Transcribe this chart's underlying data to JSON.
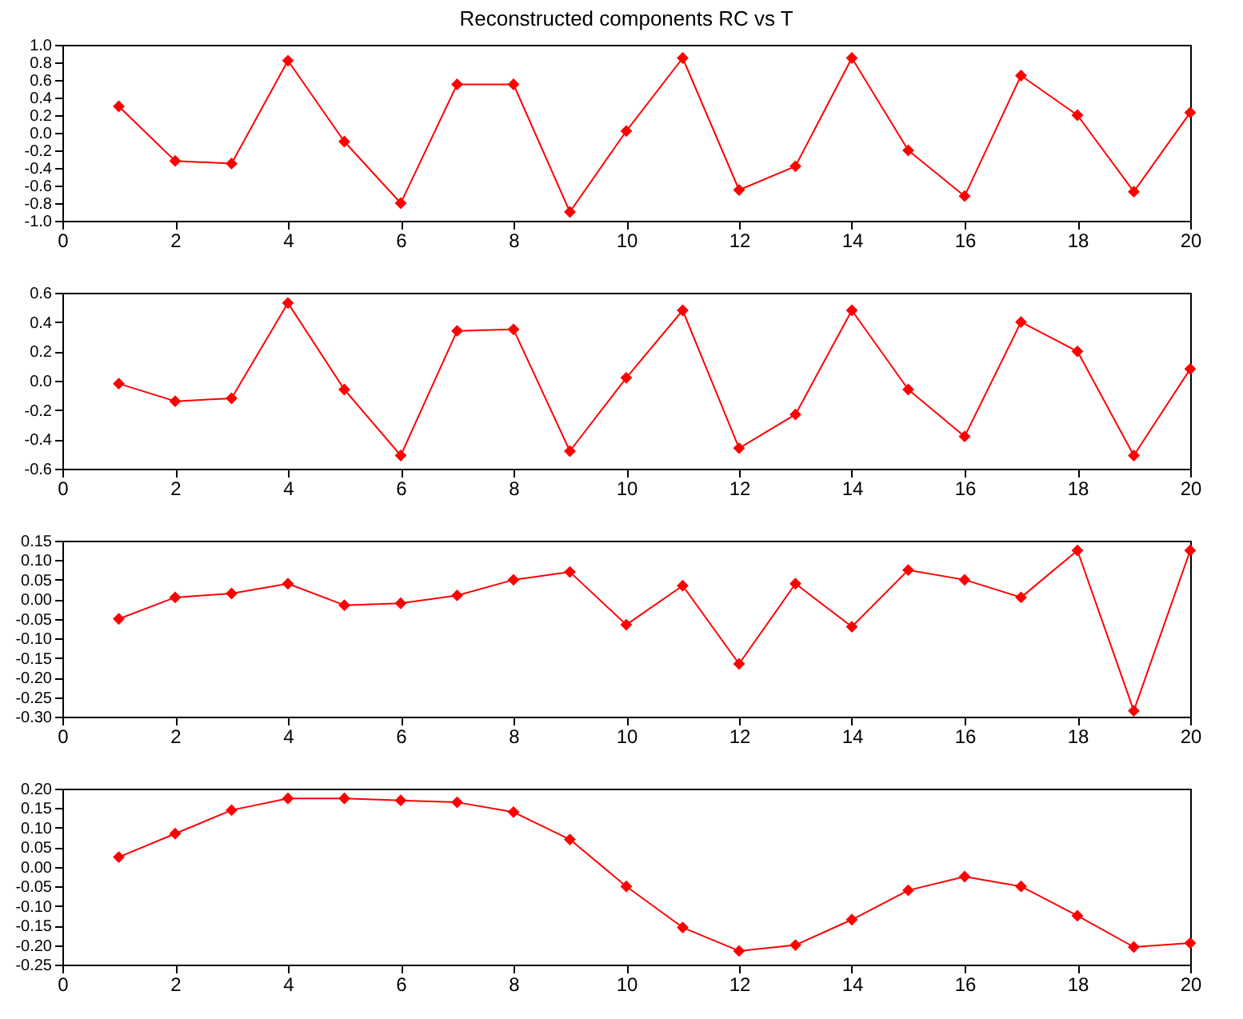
{
  "chart_data": [
    {
      "type": "line",
      "title": "Reconstructed components RC vs T",
      "x": [
        1,
        2,
        3,
        4,
        5,
        6,
        7,
        8,
        9,
        10,
        11,
        12,
        13,
        14,
        15,
        16,
        17,
        18,
        19,
        20
      ],
      "series": [
        {
          "color": "#ff0000",
          "values": [
            0.3,
            -0.32,
            -0.35,
            0.82,
            -0.1,
            -0.8,
            0.55,
            0.55,
            -0.9,
            0.02,
            0.85,
            -0.65,
            -0.38,
            0.85,
            -0.2,
            -0.72,
            0.65,
            0.2,
            -0.67,
            0.23
          ]
        }
      ],
      "xlim": [
        0,
        20
      ],
      "xticks": [
        0,
        2,
        4,
        6,
        8,
        10,
        12,
        14,
        16,
        18,
        20
      ],
      "ylim": [
        -1.0,
        1.0
      ],
      "yticks": [
        {
          "value": -1.0,
          "label": "-1.0"
        },
        {
          "value": -0.8,
          "label": "-0.8"
        },
        {
          "value": -0.6,
          "label": "-0.6"
        },
        {
          "value": -0.4,
          "label": "-0.4"
        },
        {
          "value": -0.2,
          "label": "-0.2"
        },
        {
          "value": 0,
          "label": "0.0"
        },
        {
          "value": 0.2,
          "label": "0.2"
        },
        {
          "value": 0.4,
          "label": "0.4"
        },
        {
          "value": 0.6,
          "label": "0.6"
        },
        {
          "value": 0.8,
          "label": "0.8"
        },
        {
          "value": 1.0,
          "label": "1.0"
        }
      ],
      "grid": false,
      "marker": "diamond",
      "line_style": "solid"
    },
    {
      "type": "line",
      "x": [
        1,
        2,
        3,
        4,
        5,
        6,
        7,
        8,
        9,
        10,
        11,
        12,
        13,
        14,
        15,
        16,
        17,
        18,
        19,
        20
      ],
      "series": [
        {
          "color": "#ff0000",
          "values": [
            -0.02,
            -0.14,
            -0.12,
            0.53,
            -0.06,
            -0.51,
            0.34,
            0.35,
            -0.48,
            0.02,
            0.48,
            -0.46,
            -0.23,
            0.48,
            -0.06,
            -0.38,
            0.4,
            0.2,
            -0.51,
            0.08
          ]
        }
      ],
      "xlim": [
        0,
        20
      ],
      "xticks": [
        0,
        2,
        4,
        6,
        8,
        10,
        12,
        14,
        16,
        18,
        20
      ],
      "ylim": [
        -0.6,
        0.6
      ],
      "yticks": [
        {
          "value": -0.6,
          "label": "-0.6"
        },
        {
          "value": -0.4,
          "label": "-0.4"
        },
        {
          "value": -0.2,
          "label": "-0.2"
        },
        {
          "value": 0,
          "label": "0.0"
        },
        {
          "value": 0.2,
          "label": "0.2"
        },
        {
          "value": 0.4,
          "label": "0.4"
        },
        {
          "value": 0.6,
          "label": "0.6"
        }
      ],
      "grid": false,
      "marker": "diamond",
      "line_style": "solid"
    },
    {
      "type": "line",
      "x": [
        1,
        2,
        3,
        4,
        5,
        6,
        7,
        8,
        9,
        10,
        11,
        12,
        13,
        14,
        15,
        16,
        17,
        18,
        19,
        20
      ],
      "series": [
        {
          "color": "#ff0000",
          "values": [
            -0.05,
            0.005,
            0.015,
            0.04,
            -0.015,
            -0.01,
            0.01,
            0.05,
            0.07,
            -0.065,
            0.035,
            -0.165,
            0.04,
            -0.07,
            0.075,
            0.05,
            0.005,
            0.125,
            -0.285,
            0.125
          ]
        }
      ],
      "xlim": [
        0,
        20
      ],
      "xticks": [
        0,
        2,
        4,
        6,
        8,
        10,
        12,
        14,
        16,
        18,
        20
      ],
      "ylim": [
        -0.3,
        0.15
      ],
      "yticks": [
        {
          "value": -0.3,
          "label": "-0.30"
        },
        {
          "value": -0.25,
          "label": "-0.25"
        },
        {
          "value": -0.2,
          "label": "-0.20"
        },
        {
          "value": -0.15,
          "label": "-0.15"
        },
        {
          "value": -0.1,
          "label": "-0.10"
        },
        {
          "value": -0.05,
          "label": "-0.05"
        },
        {
          "value": 0,
          "label": "0.00"
        },
        {
          "value": 0.05,
          "label": "0.05"
        },
        {
          "value": 0.1,
          "label": "0.10"
        },
        {
          "value": 0.15,
          "label": "0.15"
        }
      ],
      "grid": false,
      "marker": "diamond",
      "line_style": "solid"
    },
    {
      "type": "line",
      "x": [
        1,
        2,
        3,
        4,
        5,
        6,
        7,
        8,
        9,
        10,
        11,
        12,
        13,
        14,
        15,
        16,
        17,
        18,
        19,
        20
      ],
      "series": [
        {
          "color": "#ff0000",
          "values": [
            0.025,
            0.085,
            0.145,
            0.175,
            0.175,
            0.17,
            0.165,
            0.14,
            0.07,
            -0.05,
            -0.155,
            -0.215,
            -0.2,
            -0.135,
            -0.06,
            -0.025,
            -0.05,
            -0.125,
            -0.205,
            -0.195
          ]
        }
      ],
      "xlim": [
        0,
        20
      ],
      "xticks": [
        0,
        2,
        4,
        6,
        8,
        10,
        12,
        14,
        16,
        18,
        20
      ],
      "ylim": [
        -0.25,
        0.2
      ],
      "yticks": [
        {
          "value": -0.25,
          "label": "-0.25"
        },
        {
          "value": -0.2,
          "label": "-0.20"
        },
        {
          "value": -0.15,
          "label": "-0.15"
        },
        {
          "value": -0.1,
          "label": "-0.10"
        },
        {
          "value": -0.05,
          "label": "-0.05"
        },
        {
          "value": 0,
          "label": "0.00"
        },
        {
          "value": 0.05,
          "label": "0.05"
        },
        {
          "value": 0.1,
          "label": "0.10"
        },
        {
          "value": 0.15,
          "label": "0.15"
        },
        {
          "value": 0.2,
          "label": "0.20"
        }
      ],
      "grid": false,
      "marker": "diamond",
      "line_style": "solid"
    }
  ]
}
